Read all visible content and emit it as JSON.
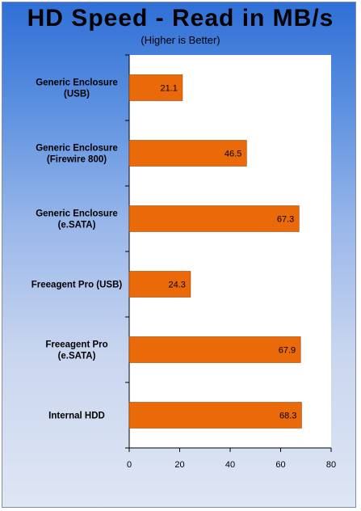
{
  "chart_data": {
    "type": "bar",
    "orientation": "horizontal",
    "title": "HD Speed - Read in MB/s",
    "subtitle": "(Higher is Better)",
    "categories": [
      [
        "Generic Enclosure",
        "(USB)"
      ],
      [
        "Generic Enclosure",
        "(Firewire 800)"
      ],
      [
        "Generic Enclosure",
        "(e.SATA)"
      ],
      [
        "Freeagent Pro (USB)"
      ],
      [
        "Freeagent Pro",
        "(e.SATA)"
      ],
      [
        "Internal HDD"
      ]
    ],
    "values": [
      21.1,
      46.5,
      67.3,
      24.3,
      67.9,
      68.3
    ],
    "data_labels": [
      "21.1",
      "46.5",
      "67.3",
      "24.3",
      "67.9",
      "68.3"
    ],
    "xlim": [
      0,
      80
    ],
    "xticks": [
      0,
      20,
      40,
      60,
      80
    ],
    "grid": false,
    "legend": "none",
    "colors": {
      "bar": "#ea6a0a",
      "bar_edge": "#9a4306"
    }
  }
}
